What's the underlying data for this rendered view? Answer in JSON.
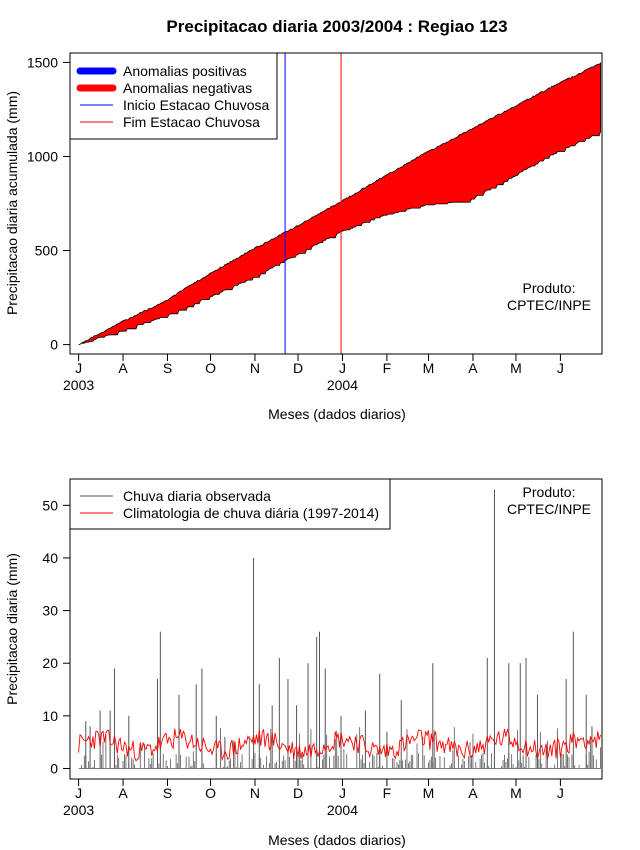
{
  "title": "Precipitacao diaria 2003/2004 : Regiao 123",
  "colors": {
    "positive": "#0000ff",
    "negative": "#ff0000",
    "axis": "#000000",
    "obs": "#555555",
    "clim": "#ff0000",
    "start": "#0000ff",
    "end": "#ff0000"
  },
  "month_labels": [
    "J",
    "A",
    "S",
    "O",
    "N",
    "D",
    "J",
    "F",
    "M",
    "A",
    "M",
    "J"
  ],
  "year_labels": [
    {
      "text": "2003",
      "month_index": 0
    },
    {
      "text": "2004",
      "month_index": 6
    }
  ],
  "chart_data": [
    {
      "type": "area",
      "name": "accumulated",
      "ylabel": "Precipitacao diaria acumulada (mm)",
      "xlabel": "Meses (dados diarios)",
      "ylim": [
        -50,
        1550
      ],
      "xlim_days": [
        -6,
        365
      ],
      "yticks": [
        0,
        500,
        1000,
        1500
      ],
      "ytick_labels": [
        "0",
        "500",
        "1000",
        "1500"
      ],
      "legend": {
        "position": "top-left",
        "items": [
          {
            "label": "Anomalias positivas",
            "color": "#0000ff",
            "style": "thick"
          },
          {
            "label": "Anomalias negativas",
            "color": "#ff0000",
            "style": "thick"
          },
          {
            "label": "Inicio Estacao Chuvosa",
            "color": "#0000ff",
            "style": "thin"
          },
          {
            "label": "Fim Estacao Chuvosa",
            "color": "#ff0000",
            "style": "thin"
          }
        ]
      },
      "vlines": [
        {
          "day": 144,
          "color": "#0000ff",
          "label": "Inicio Estacao Chuvosa"
        },
        {
          "day": 183,
          "color": "#ff0000",
          "label": "Fim Estacao Chuvosa"
        }
      ],
      "annotation": [
        "Produto:",
        "CPTEC/INPE"
      ],
      "climatology_cumulative": {
        "days": [
          0,
          30,
          60,
          90,
          120,
          150,
          183,
          210,
          240,
          270,
          300,
          330,
          364
        ],
        "values": [
          0,
          120,
          230,
          370,
          500,
          620,
          760,
          880,
          1010,
          1130,
          1250,
          1370,
          1495
        ]
      },
      "observed_cumulative": {
        "days": [
          0,
          30,
          60,
          90,
          120,
          150,
          183,
          210,
          240,
          270,
          300,
          330,
          364
        ],
        "values": [
          0,
          75,
          150,
          250,
          350,
          470,
          600,
          680,
          740,
          760,
          880,
          1010,
          1130
        ]
      }
    },
    {
      "type": "line",
      "name": "daily",
      "ylabel": "Precipitacao diaria (mm)",
      "xlabel": "Meses (dados diarios)",
      "ylim": [
        -2,
        55
      ],
      "xlim_days": [
        -6,
        365
      ],
      "yticks": [
        0,
        10,
        20,
        30,
        40,
        50
      ],
      "ytick_labels": [
        "0",
        "10",
        "20",
        "30",
        "40",
        "50"
      ],
      "legend": {
        "position": "top-left",
        "items": [
          {
            "label": "Chuva diaria observada",
            "color": "#555555",
            "style": "thin"
          },
          {
            "label": "Climatologia de chuva diária (1997-2014)",
            "color": "#ff0000",
            "style": "thin"
          }
        ]
      },
      "annotation": [
        "Produto:",
        "CPTEC/INPE"
      ],
      "clim_level_mm": 4.5,
      "observed_spikes": [
        {
          "day": 5,
          "value": 9
        },
        {
          "day": 8,
          "value": 8
        },
        {
          "day": 15,
          "value": 11
        },
        {
          "day": 22,
          "value": 11
        },
        {
          "day": 25,
          "value": 19
        },
        {
          "day": 35,
          "value": 10
        },
        {
          "day": 55,
          "value": 17
        },
        {
          "day": 57,
          "value": 26
        },
        {
          "day": 70,
          "value": 14
        },
        {
          "day": 82,
          "value": 16
        },
        {
          "day": 86,
          "value": 19
        },
        {
          "day": 96,
          "value": 10
        },
        {
          "day": 102,
          "value": 6
        },
        {
          "day": 122,
          "value": 40
        },
        {
          "day": 126,
          "value": 16
        },
        {
          "day": 135,
          "value": 12
        },
        {
          "day": 140,
          "value": 21
        },
        {
          "day": 146,
          "value": 17
        },
        {
          "day": 152,
          "value": 12
        },
        {
          "day": 160,
          "value": 20
        },
        {
          "day": 166,
          "value": 25
        },
        {
          "day": 168,
          "value": 26
        },
        {
          "day": 172,
          "value": 19
        },
        {
          "day": 183,
          "value": 10
        },
        {
          "day": 200,
          "value": 11
        },
        {
          "day": 210,
          "value": 18
        },
        {
          "day": 215,
          "value": 7
        },
        {
          "day": 225,
          "value": 13
        },
        {
          "day": 247,
          "value": 20
        },
        {
          "day": 285,
          "value": 21
        },
        {
          "day": 290,
          "value": 53
        },
        {
          "day": 300,
          "value": 20
        },
        {
          "day": 308,
          "value": 20
        },
        {
          "day": 312,
          "value": 21
        },
        {
          "day": 320,
          "value": 14
        },
        {
          "day": 340,
          "value": 17
        },
        {
          "day": 345,
          "value": 26
        },
        {
          "day": 354,
          "value": 14
        },
        {
          "day": 358,
          "value": 8
        }
      ]
    }
  ]
}
